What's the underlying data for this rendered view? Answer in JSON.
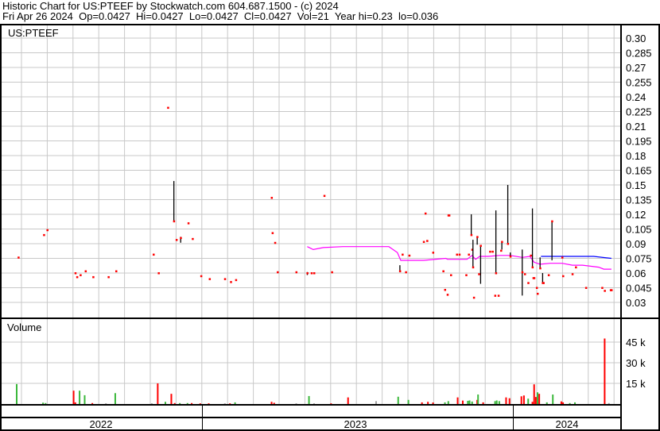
{
  "header": {
    "title": "Historic Chart for US:PTEEF by Stockwatch.com 604.687.1500 - (c) 2024",
    "quote_line": "Fri Apr 26 2024  Op=0.0427  Hi=0.0427  Lo=0.0427  Cl=0.0427  Vol=21  Year hi=0.23  lo=0.036"
  },
  "colors": {
    "up": "#3cb83c",
    "down": "#ff0000",
    "flat": "#a0a0a0",
    "close_dot": "#ff0000",
    "range_bar": "#000000",
    "ma_short": "#ff00ff",
    "ma_long": "#0000ff",
    "grid": "#c8c8c8"
  },
  "chart_data": [
    {
      "type": "scatter",
      "title": "US:PTEEF",
      "x_type": "date",
      "xlim": [
        "2022-05-07",
        "2024-04-28"
      ],
      "x_tick_labels": [
        "2022",
        "2023",
        "2024"
      ],
      "ylim": [
        0.0225,
        0.3075
      ],
      "y_ticks": [
        "0.30",
        "0.285",
        "0.27",
        "0.255",
        "0.24",
        "0.225",
        "0.21",
        "0.195",
        "0.18",
        "0.165",
        "0.15",
        "0.135",
        "0.12",
        "0.105",
        "0.09",
        "0.075",
        "0.06",
        "0.045",
        "0.03"
      ],
      "grid": true,
      "points": [
        {
          "d": "2022-05-29",
          "c": 0.076
        },
        {
          "d": "2022-06-28",
          "c": 0.099
        },
        {
          "d": "2022-07-02",
          "c": 0.104
        },
        {
          "d": "2022-08-04",
          "c": 0.06
        },
        {
          "d": "2022-08-06",
          "c": 0.056
        },
        {
          "d": "2022-08-10",
          "c": 0.058
        },
        {
          "d": "2022-08-16",
          "c": 0.062
        },
        {
          "d": "2022-08-25",
          "c": 0.056
        },
        {
          "d": "2022-09-12",
          "c": 0.056
        },
        {
          "d": "2022-09-21",
          "c": 0.062
        },
        {
          "d": "2022-11-04",
          "c": 0.079
        },
        {
          "d": "2022-11-10",
          "c": 0.06
        },
        {
          "d": "2022-11-21",
          "c": 0.229
        },
        {
          "d": "2022-11-28",
          "c": 0.113,
          "h": 0.154,
          "l": 0.113
        },
        {
          "d": "2022-12-01",
          "c": 0.094
        },
        {
          "d": "2022-12-06",
          "c": 0.096,
          "h": 0.097,
          "l": 0.091
        },
        {
          "d": "2022-12-15",
          "c": 0.111
        },
        {
          "d": "2022-12-20",
          "c": 0.095
        },
        {
          "d": "2022-12-30",
          "c": 0.057
        },
        {
          "d": "2023-01-09",
          "c": 0.054
        },
        {
          "d": "2023-01-27",
          "c": 0.054
        },
        {
          "d": "2023-02-03",
          "c": 0.051
        },
        {
          "d": "2023-02-09",
          "c": 0.053
        },
        {
          "d": "2023-03-23",
          "c": 0.137
        },
        {
          "d": "2023-03-24",
          "c": 0.101
        },
        {
          "d": "2023-03-27",
          "c": 0.091
        },
        {
          "d": "2023-03-30",
          "c": 0.061
        },
        {
          "d": "2023-04-21",
          "c": 0.061
        },
        {
          "d": "2023-05-04",
          "c": 0.06,
          "h": 0.061,
          "l": 0.058
        },
        {
          "d": "2023-05-09",
          "c": 0.06
        },
        {
          "d": "2023-05-12",
          "c": 0.06
        },
        {
          "d": "2023-05-24",
          "c": 0.139
        },
        {
          "d": "2023-06-02",
          "c": 0.061
        },
        {
          "d": "2023-08-21",
          "c": 0.062,
          "h": 0.068,
          "l": 0.062
        },
        {
          "d": "2023-08-24",
          "c": 0.079
        },
        {
          "d": "2023-08-28",
          "c": 0.061
        },
        {
          "d": "2023-09-01",
          "c": 0.078
        },
        {
          "d": "2023-09-18",
          "c": 0.092
        },
        {
          "d": "2023-09-20",
          "c": 0.121
        },
        {
          "d": "2023-09-22",
          "c": 0.093
        },
        {
          "d": "2023-09-29",
          "c": 0.081
        },
        {
          "d": "2023-10-11",
          "c": 0.062
        },
        {
          "d": "2023-10-13",
          "c": 0.043
        },
        {
          "d": "2023-10-16",
          "c": 0.038
        },
        {
          "d": "2023-10-17",
          "c": 0.119
        },
        {
          "d": "2023-10-18",
          "c": 0.119
        },
        {
          "d": "2023-10-20",
          "c": 0.058
        },
        {
          "d": "2023-10-27",
          "c": 0.079
        },
        {
          "d": "2023-10-30",
          "c": 0.079
        },
        {
          "d": "2023-11-07",
          "c": 0.058
        },
        {
          "d": "2023-11-10",
          "c": 0.079
        },
        {
          "d": "2023-11-13",
          "c": 0.099,
          "h": 0.12,
          "l": 0.099
        },
        {
          "d": "2023-11-14",
          "c": 0.084
        },
        {
          "d": "2023-11-15",
          "c": 0.066,
          "h": 0.094,
          "l": 0.066
        },
        {
          "d": "2023-11-16",
          "c": 0.035
        },
        {
          "d": "2023-11-20",
          "c": 0.097,
          "h": 0.097,
          "l": 0.089
        },
        {
          "d": "2023-11-22",
          "c": 0.059
        },
        {
          "d": "2023-11-24",
          "c": 0.088,
          "h": 0.088,
          "l": 0.049
        },
        {
          "d": "2023-12-05",
          "c": 0.082
        },
        {
          "d": "2023-12-08",
          "c": 0.082
        },
        {
          "d": "2023-12-11",
          "c": 0.037
        },
        {
          "d": "2023-12-12",
          "c": 0.06,
          "h": 0.124,
          "l": 0.06
        },
        {
          "d": "2023-12-15",
          "c": 0.037
        },
        {
          "d": "2023-12-18",
          "c": 0.083
        },
        {
          "d": "2023-12-19",
          "c": 0.092,
          "h": 0.092,
          "l": 0.084
        },
        {
          "d": "2023-12-26",
          "c": 0.09,
          "h": 0.15,
          "l": 0.09
        },
        {
          "d": "2023-12-29",
          "c": 0.077,
          "h": 0.081,
          "l": 0.077
        },
        {
          "d": "2024-01-12",
          "c": 0.061,
          "h": 0.084,
          "l": 0.037
        },
        {
          "d": "2024-01-15",
          "c": 0.059
        },
        {
          "d": "2024-01-19",
          "c": 0.05
        },
        {
          "d": "2024-01-22",
          "c": 0.078
        },
        {
          "d": "2024-01-24",
          "c": 0.066,
          "h": 0.126,
          "l": 0.066
        },
        {
          "d": "2024-01-25",
          "c": 0.055
        },
        {
          "d": "2024-01-26",
          "c": 0.055
        },
        {
          "d": "2024-01-29",
          "c": 0.045
        },
        {
          "d": "2024-01-30",
          "c": 0.039
        },
        {
          "d": "2024-02-02",
          "c": 0.065,
          "h": 0.076,
          "l": 0.065
        },
        {
          "d": "2024-02-05",
          "c": 0.05,
          "h": 0.06,
          "l": 0.05
        },
        {
          "d": "2024-02-06",
          "c": 0.05
        },
        {
          "d": "2024-02-12",
          "c": 0.058
        },
        {
          "d": "2024-02-16",
          "c": 0.113,
          "h": 0.113,
          "l": 0.073
        },
        {
          "d": "2024-02-28",
          "c": 0.076
        },
        {
          "d": "2024-02-29",
          "c": 0.057
        },
        {
          "d": "2024-03-11",
          "c": 0.059
        },
        {
          "d": "2024-03-15",
          "c": 0.066
        },
        {
          "d": "2024-03-27",
          "c": 0.045
        },
        {
          "d": "2024-04-15",
          "c": 0.045
        },
        {
          "d": "2024-04-18",
          "c": 0.042
        },
        {
          "d": "2024-04-25",
          "c": 0.0427
        },
        {
          "d": "2024-04-26",
          "c": 0.0427
        }
      ],
      "moving_averages": [
        {
          "color_key": "ma_short",
          "values": [
            [
              "2023-05-04",
              0.087
            ],
            [
              "2023-05-11",
              0.084
            ],
            [
              "2023-05-23",
              0.086
            ],
            [
              "2023-06-15",
              0.087
            ],
            [
              "2023-08-08",
              0.087
            ],
            [
              "2023-08-18",
              0.081
            ],
            [
              "2023-08-22",
              0.073
            ],
            [
              "2023-09-18",
              0.073
            ],
            [
              "2023-10-14",
              0.075
            ],
            [
              "2023-10-16",
              0.074
            ],
            [
              "2023-11-08",
              0.074
            ],
            [
              "2023-11-14",
              0.078
            ],
            [
              "2023-11-18",
              0.074
            ],
            [
              "2023-11-23",
              0.077
            ],
            [
              "2023-12-03",
              0.077
            ],
            [
              "2023-12-16",
              0.078
            ],
            [
              "2023-12-29",
              0.078
            ],
            [
              "2024-01-12",
              0.076
            ],
            [
              "2024-01-21",
              0.077
            ],
            [
              "2024-01-26",
              0.071
            ],
            [
              "2024-02-02",
              0.069
            ],
            [
              "2024-02-14",
              0.07
            ],
            [
              "2024-02-28",
              0.07
            ],
            [
              "2024-03-11",
              0.068
            ],
            [
              "2024-03-23",
              0.068
            ],
            [
              "2024-04-11",
              0.066
            ],
            [
              "2024-04-17",
              0.064
            ],
            [
              "2024-04-26",
              0.064
            ]
          ]
        },
        {
          "color_key": "ma_long",
          "values": [
            [
              "2024-02-03",
              0.077
            ],
            [
              "2024-04-05",
              0.077
            ],
            [
              "2024-04-26",
              0.075
            ]
          ]
        }
      ]
    },
    {
      "type": "bar",
      "title": "Volume",
      "x_type": "date",
      "ylim": [
        0,
        55000
      ],
      "y_ticks": [
        {
          "v": 45000,
          "label": "45 k"
        },
        {
          "v": 30000,
          "label": "30 k"
        },
        {
          "v": 15000,
          "label": "15 k"
        }
      ],
      "bars": [
        [
          "2022-05-27",
          14500,
          "up"
        ],
        [
          "2022-06-27",
          1000,
          "up"
        ],
        [
          "2022-06-30",
          700,
          "up"
        ],
        [
          "2022-08-02",
          9700,
          "down"
        ],
        [
          "2022-08-04",
          1200,
          "down"
        ],
        [
          "2022-08-09",
          9700,
          "up"
        ],
        [
          "2022-08-15",
          6400,
          "up"
        ],
        [
          "2022-08-24",
          700,
          "down"
        ],
        [
          "2022-09-09",
          500,
          "flat"
        ],
        [
          "2022-09-20",
          7900,
          "up"
        ],
        [
          "2022-11-02",
          500,
          "flat"
        ],
        [
          "2022-11-09",
          15000,
          "down"
        ],
        [
          "2022-11-18",
          1600,
          "up"
        ],
        [
          "2022-11-25",
          7400,
          "down"
        ],
        [
          "2022-11-29",
          700,
          "down"
        ],
        [
          "2022-12-05",
          700,
          "up"
        ],
        [
          "2022-12-14",
          700,
          "up"
        ],
        [
          "2022-12-19",
          700,
          "down"
        ],
        [
          "2022-12-29",
          500,
          "down"
        ],
        [
          "2023-01-08",
          500,
          "down"
        ],
        [
          "2023-01-27",
          500,
          "flat"
        ],
        [
          "2023-02-02",
          500,
          "down"
        ],
        [
          "2023-02-08",
          1200,
          "up"
        ],
        [
          "2023-03-23",
          1600,
          "down"
        ],
        [
          "2023-03-26",
          900,
          "down"
        ],
        [
          "2023-04-21",
          500,
          "flat"
        ],
        [
          "2023-05-06",
          5800,
          "up"
        ],
        [
          "2023-05-12",
          500,
          "flat"
        ],
        [
          "2023-06-01",
          500,
          "down"
        ],
        [
          "2023-06-21",
          4800,
          "down"
        ],
        [
          "2023-07-24",
          2100,
          "flat"
        ],
        [
          "2023-08-19",
          5300,
          "up"
        ],
        [
          "2023-08-31",
          3000,
          "up"
        ],
        [
          "2023-09-16",
          1200,
          "down"
        ],
        [
          "2023-09-23",
          1600,
          "down"
        ],
        [
          "2023-09-29",
          1100,
          "down"
        ],
        [
          "2023-10-13",
          1200,
          "up"
        ],
        [
          "2023-10-17",
          2100,
          "up"
        ],
        [
          "2023-10-28",
          4800,
          "down"
        ],
        [
          "2023-11-03",
          2500,
          "down"
        ],
        [
          "2023-11-09",
          2300,
          "up"
        ],
        [
          "2023-11-11",
          2600,
          "up"
        ],
        [
          "2023-11-14",
          1800,
          "up"
        ],
        [
          "2023-11-20",
          3000,
          "down"
        ],
        [
          "2023-11-21",
          6900,
          "up"
        ],
        [
          "2023-11-27",
          1200,
          "down"
        ],
        [
          "2023-12-11",
          2100,
          "up"
        ],
        [
          "2023-12-13",
          2600,
          "up"
        ],
        [
          "2023-12-16",
          2100,
          "up"
        ],
        [
          "2023-12-24",
          4800,
          "down"
        ],
        [
          "2023-12-28",
          4200,
          "down"
        ],
        [
          "2024-01-11",
          5600,
          "down"
        ],
        [
          "2024-01-14",
          6200,
          "down"
        ],
        [
          "2024-01-19",
          3900,
          "up"
        ],
        [
          "2024-01-24",
          1600,
          "down"
        ],
        [
          "2024-01-26",
          14300,
          "down"
        ],
        [
          "2024-01-28",
          5100,
          "down"
        ],
        [
          "2024-01-30",
          8500,
          "up"
        ],
        [
          "2024-02-01",
          7400,
          "down"
        ],
        [
          "2024-02-10",
          1200,
          "up"
        ],
        [
          "2024-02-17",
          6900,
          "up"
        ],
        [
          "2024-02-27",
          1900,
          "down"
        ],
        [
          "2024-02-29",
          1200,
          "down"
        ],
        [
          "2024-03-08",
          700,
          "up"
        ],
        [
          "2024-03-14",
          1200,
          "up"
        ],
        [
          "2024-04-18",
          47600,
          "down"
        ],
        [
          "2024-04-23",
          700,
          "flat"
        ],
        [
          "2024-04-26",
          21,
          "flat"
        ]
      ]
    }
  ]
}
